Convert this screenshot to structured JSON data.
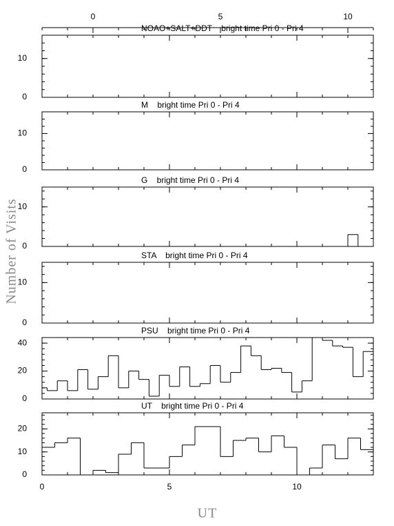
{
  "ylabel": "Number of Visits",
  "xlabel": "UT",
  "chart_data": [
    {
      "type": "histogram",
      "title": "NOAO+SALT+DDT    bright time Pri 0 - Pri 4",
      "bins": [],
      "values": [],
      "xlim": [
        0,
        13
      ],
      "ylim": [
        0,
        16
      ],
      "yticks": [
        0,
        10
      ],
      "x2lim": [
        -2,
        11
      ],
      "x2ticks": [
        0,
        5,
        10
      ]
    },
    {
      "type": "histogram",
      "title": "M    bright time Pri 0 - Pri 4",
      "bins": [],
      "values": [],
      "xlim": [
        0,
        13
      ],
      "ylim": [
        0,
        16
      ],
      "yticks": [
        0,
        10
      ]
    },
    {
      "type": "histogram",
      "title": "G    bright time Pri 0 - Pri 4",
      "bins": [
        12,
        12.4
      ],
      "values": [
        3
      ],
      "xlim": [
        0,
        13
      ],
      "ylim": [
        0,
        15
      ],
      "yticks": [
        0,
        10
      ]
    },
    {
      "type": "histogram",
      "title": "STA    bright time Pri 0 - Pri 4",
      "bins": [],
      "values": [],
      "xlim": [
        0,
        13
      ],
      "ylim": [
        0,
        15
      ],
      "yticks": [
        0,
        10
      ]
    },
    {
      "type": "histogram",
      "title": "PSU    bright time Pri 0 - Pri 4",
      "bins": [
        0,
        0.2,
        0.6,
        1.0,
        1.4,
        1.8,
        2.2,
        2.6,
        3.0,
        3.4,
        3.8,
        4.2,
        4.6,
        5.0,
        5.4,
        5.8,
        6.2,
        6.6,
        7.0,
        7.4,
        7.8,
        8.2,
        8.6,
        9.0,
        9.4,
        9.8,
        10.2,
        10.6,
        11.0,
        11.4,
        11.8,
        12.2,
        12.6,
        13.0
      ],
      "values": [
        8,
        6,
        13,
        6,
        21,
        7,
        16,
        31,
        8,
        20,
        14,
        2,
        17,
        9,
        23,
        9,
        11,
        24,
        12,
        19,
        38,
        31,
        21,
        22,
        19,
        5,
        13,
        44,
        42,
        38,
        37,
        16,
        34
      ],
      "xlim": [
        0,
        13
      ],
      "ylim": [
        0,
        44
      ],
      "yticks": [
        0,
        20,
        40
      ]
    },
    {
      "type": "histogram",
      "title": "UT    bright time Pri 0 - Pri 4",
      "bins": [
        0,
        0.5,
        1.0,
        1.5,
        2.0,
        2.5,
        3.0,
        3.5,
        4.0,
        4.5,
        5.0,
        5.5,
        6.0,
        6.5,
        7.0,
        7.5,
        8.0,
        8.5,
        9.0,
        9.5,
        10.0,
        10.5,
        11.0,
        11.5,
        12.0,
        12.5,
        13.0
      ],
      "values": [
        12,
        14,
        16,
        0,
        2,
        1,
        9,
        14,
        3,
        3,
        8,
        13,
        21,
        21,
        8,
        15,
        16,
        10,
        17,
        12,
        0,
        3,
        13,
        7,
        16,
        11
      ],
      "xlim": [
        0,
        13
      ],
      "ylim": [
        0,
        27
      ],
      "yticks": [
        0,
        10,
        20
      ],
      "xticks": [
        0,
        5,
        10
      ]
    }
  ]
}
